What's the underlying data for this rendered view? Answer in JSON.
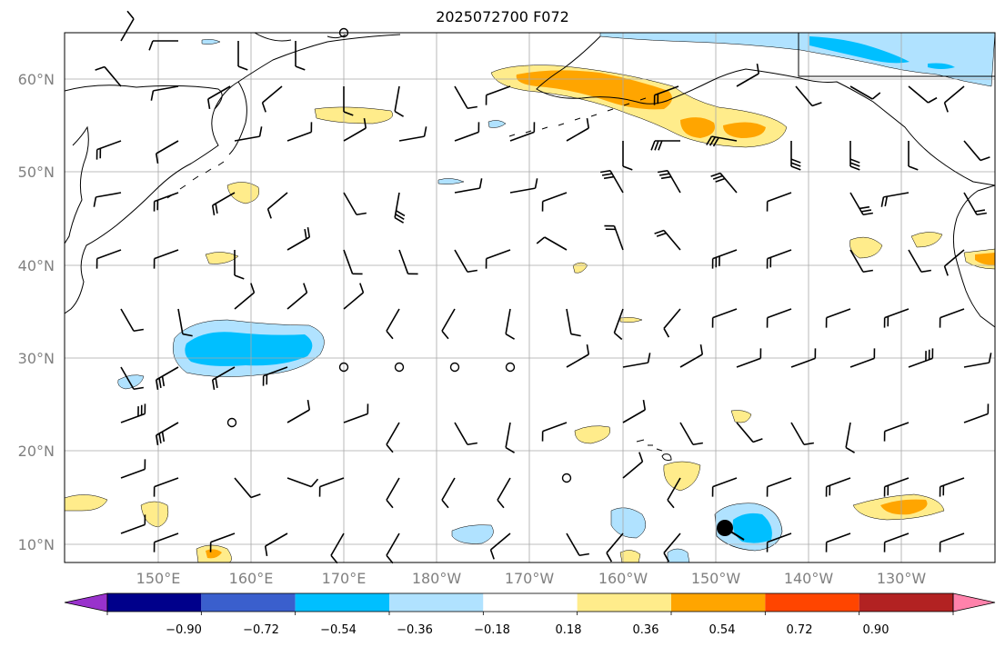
{
  "title": "2025072700 F072",
  "latitude_labels": [
    "60°N",
    "50°N",
    "40°N",
    "30°N",
    "20°N",
    "10°N"
  ],
  "longitude_labels": [
    "150°E",
    "160°E",
    "170°E",
    "180°W",
    "170°W",
    "160°W",
    "150°W",
    "140°W",
    "130°W"
  ],
  "colorbar": {
    "ticks": [
      "−0.90",
      "−0.72",
      "−0.54",
      "−0.36",
      "−0.18",
      "0.18",
      "0.36",
      "0.54",
      "0.72",
      "0.90"
    ],
    "colors": [
      "#9932cc",
      "#00008b",
      "#3a5fcd",
      "#00bfff",
      "#b0e2ff",
      "#ffffff",
      "#ffec8b",
      "#ffa500",
      "#ff4500",
      "#b22222",
      "#ff82ab"
    ]
  },
  "colors": {
    "coastline": "#000000",
    "gridline": "#a9a9a9",
    "axis_label": "#808080",
    "wind_barb": "#000000",
    "storm_marker": "#000000"
  }
}
